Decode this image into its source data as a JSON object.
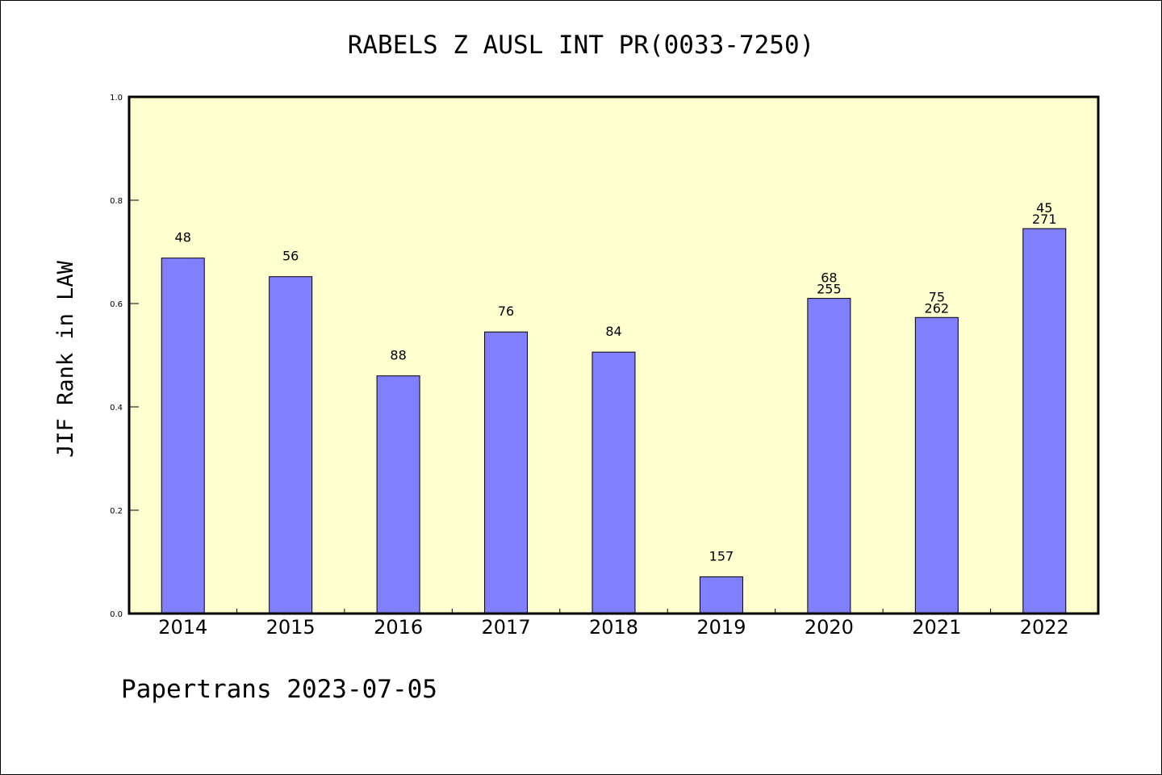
{
  "chart_data": {
    "type": "bar",
    "title": "RABELS Z AUSL INT PR(0033-7250)",
    "xlabel": "",
    "ylabel": "JIF Rank in LAW",
    "ylim": [
      0,
      1.0
    ],
    "yticks": [
      "0.0",
      "0.2",
      "0.4",
      "0.6",
      "0.8",
      "1.0"
    ],
    "categories": [
      "2014",
      "2015",
      "2016",
      "2017",
      "2018",
      "2019",
      "2020",
      "2021",
      "2022"
    ],
    "values": [
      0.688,
      0.652,
      0.46,
      0.545,
      0.506,
      0.071,
      0.61,
      0.573,
      0.745
    ],
    "labels": [
      [
        "48"
      ],
      [
        "56"
      ],
      [
        "88"
      ],
      [
        "76"
      ],
      [
        "84"
      ],
      [
        "157"
      ],
      [
        "68",
        "255"
      ],
      [
        "75",
        "262"
      ],
      [
        "45",
        "271"
      ]
    ],
    "grid": false,
    "colors": {
      "bar_fill": "#8080ff",
      "bar_stroke": "#000000",
      "plot_background": "#ffffd0"
    }
  },
  "footer": "Papertrans 2023-07-05"
}
